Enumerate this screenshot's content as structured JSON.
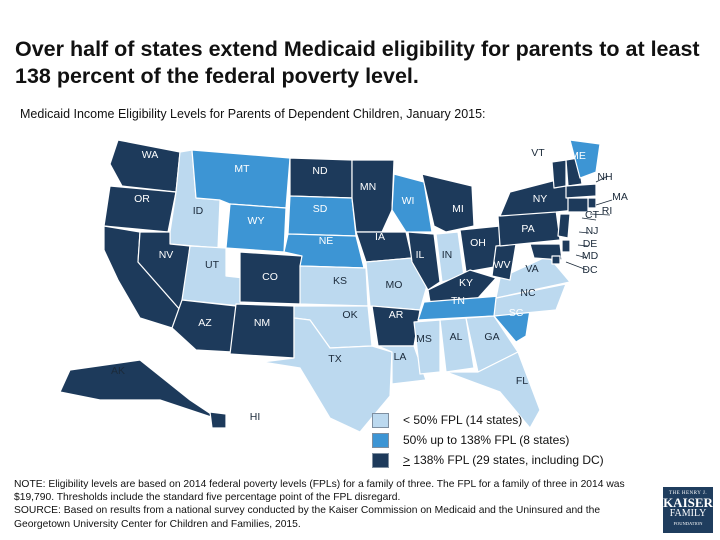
{
  "title": "Over half of states extend Medicaid eligibility for parents to at least 138 percent of the federal poverty level.",
  "subtitle": "Medicaid Income Eligibility Levels for Parents of Dependent Children, January 2015:",
  "colors": {
    "low": "#bcd9ef",
    "mid": "#3d95d4",
    "high": "#1d3a5b"
  },
  "legend": [
    {
      "category": "low",
      "label": "< 50% FPL (14 states)"
    },
    {
      "category": "mid",
      "label": "50% up to 138% FPL (8 states)"
    },
    {
      "category": "high",
      "prefix": ">",
      "label": " 138% FPL (29 states, including DC)"
    }
  ],
  "states": [
    {
      "abbr": "WA",
      "category": "high"
    },
    {
      "abbr": "OR",
      "category": "high"
    },
    {
      "abbr": "CA",
      "category": "high"
    },
    {
      "abbr": "ID",
      "category": "low"
    },
    {
      "abbr": "NV",
      "category": "high"
    },
    {
      "abbr": "MT",
      "category": "mid"
    },
    {
      "abbr": "WY",
      "category": "mid"
    },
    {
      "abbr": "UT",
      "category": "low"
    },
    {
      "abbr": "AZ",
      "category": "high"
    },
    {
      "abbr": "CO",
      "category": "high"
    },
    {
      "abbr": "NM",
      "category": "high"
    },
    {
      "abbr": "ND",
      "category": "high"
    },
    {
      "abbr": "SD",
      "category": "mid"
    },
    {
      "abbr": "NE",
      "category": "mid"
    },
    {
      "abbr": "KS",
      "category": "low"
    },
    {
      "abbr": "OK",
      "category": "low"
    },
    {
      "abbr": "TX",
      "category": "low"
    },
    {
      "abbr": "MN",
      "category": "high"
    },
    {
      "abbr": "IA",
      "category": "high"
    },
    {
      "abbr": "MO",
      "category": "low"
    },
    {
      "abbr": "AR",
      "category": "high"
    },
    {
      "abbr": "LA",
      "category": "low"
    },
    {
      "abbr": "WI",
      "category": "mid"
    },
    {
      "abbr": "IL",
      "category": "high"
    },
    {
      "abbr": "MI",
      "category": "high"
    },
    {
      "abbr": "IN",
      "category": "low"
    },
    {
      "abbr": "OH",
      "category": "high"
    },
    {
      "abbr": "KY",
      "category": "high"
    },
    {
      "abbr": "TN",
      "category": "mid"
    },
    {
      "abbr": "MS",
      "category": "low"
    },
    {
      "abbr": "AL",
      "category": "low"
    },
    {
      "abbr": "GA",
      "category": "low"
    },
    {
      "abbr": "FL",
      "category": "low"
    },
    {
      "abbr": "SC",
      "category": "mid"
    },
    {
      "abbr": "NC",
      "category": "low"
    },
    {
      "abbr": "VA",
      "category": "low"
    },
    {
      "abbr": "WV",
      "category": "high"
    },
    {
      "abbr": "PA",
      "category": "high"
    },
    {
      "abbr": "NY",
      "category": "high"
    },
    {
      "abbr": "VT",
      "category": "high"
    },
    {
      "abbr": "NH",
      "category": "high"
    },
    {
      "abbr": "ME",
      "category": "mid"
    },
    {
      "abbr": "MA",
      "category": "high"
    },
    {
      "abbr": "RI",
      "category": "high"
    },
    {
      "abbr": "CT",
      "category": "high"
    },
    {
      "abbr": "NJ",
      "category": "high"
    },
    {
      "abbr": "DE",
      "category": "high"
    },
    {
      "abbr": "MD",
      "category": "high"
    },
    {
      "abbr": "DC",
      "category": "high"
    },
    {
      "abbr": "AK",
      "category": "high"
    },
    {
      "abbr": "HI",
      "category": "high"
    }
  ],
  "note": "NOTE: Eligibility levels are based on 2014 federal poverty levels (FPLs) for a family of three. The FPL for a family of three in 2014 was $19,790. Thresholds include the standard five percentage point of the FPL disregard.",
  "source": "SOURCE: Based on results from a national survey conducted by the Kaiser Commission on Medicaid and the Uninsured and the Georgetown University Center for Children and Families, 2015.",
  "logo": {
    "line1": "THE HENRY J.",
    "line2": "KAISER",
    "line3": "FAMILY",
    "line4": "FOUNDATION"
  }
}
